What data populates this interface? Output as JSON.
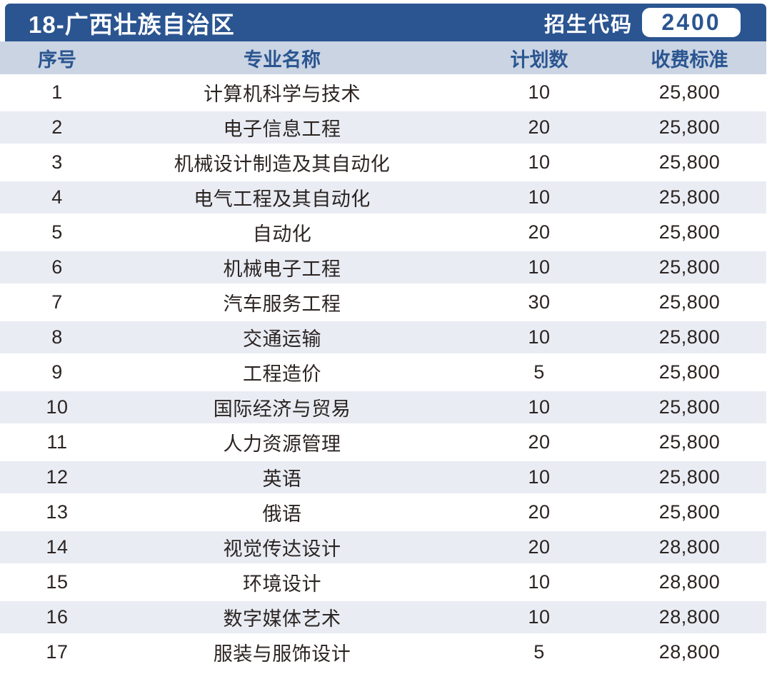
{
  "header": {
    "title": "18-广西壮族自治区",
    "code_label": "招生代码",
    "code_value": "2400"
  },
  "columns": {
    "no": "序号",
    "major": "专业名称",
    "plan": "计划数",
    "fee": "收费标准"
  },
  "rows": [
    {
      "no": "1",
      "major": "计算机科学与技术",
      "plan": "10",
      "fee": "25,800"
    },
    {
      "no": "2",
      "major": "电子信息工程",
      "plan": "20",
      "fee": "25,800"
    },
    {
      "no": "3",
      "major": "机械设计制造及其自动化",
      "plan": "10",
      "fee": "25,800"
    },
    {
      "no": "4",
      "major": "电气工程及其自动化",
      "plan": "10",
      "fee": "25,800"
    },
    {
      "no": "5",
      "major": "自动化",
      "plan": "20",
      "fee": "25,800"
    },
    {
      "no": "6",
      "major": "机械电子工程",
      "plan": "10",
      "fee": "25,800"
    },
    {
      "no": "7",
      "major": "汽车服务工程",
      "plan": "30",
      "fee": "25,800"
    },
    {
      "no": "8",
      "major": "交通运输",
      "plan": "10",
      "fee": "25,800"
    },
    {
      "no": "9",
      "major": "工程造价",
      "plan": "5",
      "fee": "25,800"
    },
    {
      "no": "10",
      "major": "国际经济与贸易",
      "plan": "10",
      "fee": "25,800"
    },
    {
      "no": "11",
      "major": "人力资源管理",
      "plan": "20",
      "fee": "25,800"
    },
    {
      "no": "12",
      "major": "英语",
      "plan": "10",
      "fee": "25,800"
    },
    {
      "no": "13",
      "major": "俄语",
      "plan": "20",
      "fee": "25,800"
    },
    {
      "no": "14",
      "major": "视觉传达设计",
      "plan": "20",
      "fee": "28,800"
    },
    {
      "no": "15",
      "major": "环境设计",
      "plan": "10",
      "fee": "28,800"
    },
    {
      "no": "16",
      "major": "数字媒体艺术",
      "plan": "10",
      "fee": "28,800"
    },
    {
      "no": "17",
      "major": "服装与服饰设计",
      "plan": "5",
      "fee": "28,800"
    }
  ],
  "colors": {
    "title_bar_bg": "#2B5591",
    "title_text": "#FFFFFF",
    "badge_bg": "#FFFFFF",
    "badge_text": "#2B5591",
    "column_header_bg": "#CAD4E3",
    "column_header_text": "#2A5590",
    "row_alt_bg": "#E9ECF3",
    "row_bg": "#FFFFFF",
    "cell_text": "#2B2422"
  }
}
